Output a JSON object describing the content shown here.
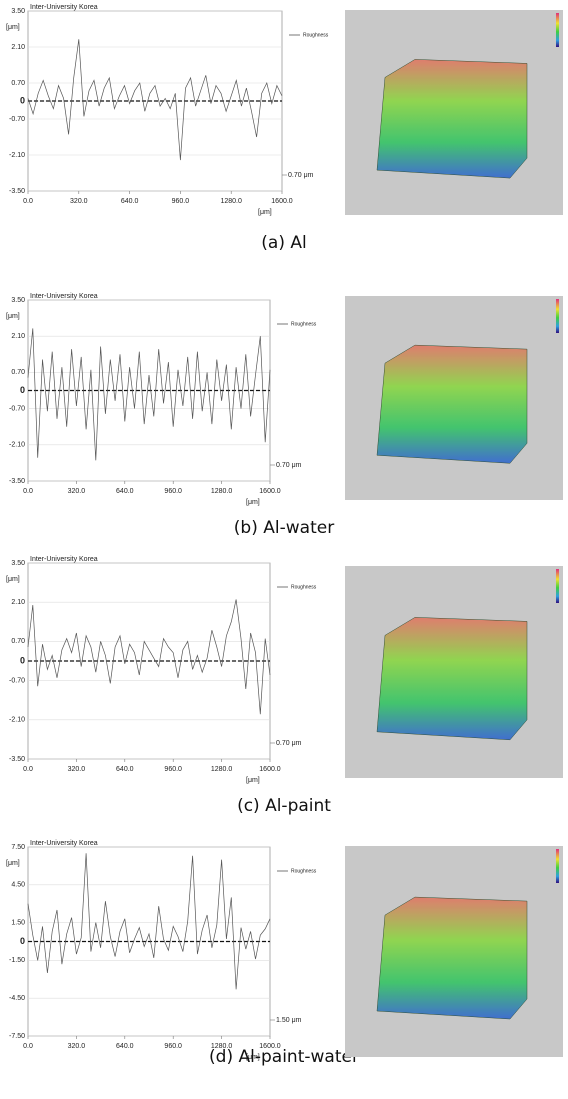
{
  "chart_data": [
    {
      "type": "line",
      "title": "Inter-University Korea",
      "y_label": "[μm]",
      "x_label": "[μm]",
      "caption": "(a)  Al",
      "annotation": "0.70 μm",
      "grid": true,
      "zero_line": true,
      "x": [
        0,
        32,
        64,
        96,
        128,
        160,
        192,
        224,
        256,
        288,
        320,
        352,
        384,
        416,
        448,
        480,
        512,
        544,
        576,
        608,
        640,
        672,
        704,
        736,
        768,
        800,
        832,
        864,
        896,
        928,
        960,
        992,
        1024,
        1056,
        1088,
        1120,
        1152,
        1184,
        1216,
        1248,
        1280,
        1312,
        1344,
        1376,
        1408,
        1440,
        1472,
        1504,
        1536,
        1568,
        1600
      ],
      "series": [
        {
          "name": "Roughness",
          "color": "#555555",
          "values": [
            0.1,
            -0.5,
            0.3,
            0.8,
            0.2,
            -0.3,
            0.6,
            0.1,
            -1.3,
            0.9,
            2.4,
            -0.6,
            0.4,
            0.8,
            -0.2,
            0.5,
            0.9,
            -0.3,
            0.2,
            0.6,
            -0.1,
            0.4,
            0.7,
            -0.4,
            0.3,
            0.6,
            -0.2,
            0.1,
            -0.3,
            0.3,
            -2.3,
            0.5,
            0.9,
            -0.2,
            0.4,
            1.0,
            -0.1,
            0.6,
            0.3,
            -0.4,
            0.2,
            0.8,
            -0.2,
            0.5,
            -0.4,
            -1.4,
            0.3,
            0.7,
            -0.1,
            0.6,
            0.2
          ]
        }
      ],
      "xlim": [
        0,
        1600
      ],
      "xticks": [
        {
          "value": 0,
          "label": "0.0"
        },
        {
          "value": 320,
          "label": "320.0"
        },
        {
          "value": 640,
          "label": "640.0"
        },
        {
          "value": 960,
          "label": "960.0"
        },
        {
          "value": 1280,
          "label": "1280.0"
        },
        {
          "value": 1600,
          "label": "1600.0"
        }
      ],
      "ylim": [
        -3.5,
        3.5
      ],
      "yticks": [
        {
          "value": 3.5,
          "label": "3.50"
        },
        {
          "value": 2.1,
          "label": "2.10"
        },
        {
          "value": 0.7,
          "label": "0.70"
        },
        0,
        {
          "value": -0.7,
          "label": "-0.70"
        },
        {
          "value": -2.1,
          "label": "-2.10"
        },
        {
          "value": -3.5,
          "label": "-3.50"
        }
      ]
    },
    {
      "type": "line",
      "title": "Inter-University Korea",
      "y_label": "[μm]",
      "x_label": "[μm]",
      "caption": "(b)  Al-water",
      "annotation": "0.70 μm",
      "grid": true,
      "zero_line": true,
      "x": [
        0,
        32,
        64,
        96,
        128,
        160,
        192,
        224,
        256,
        288,
        320,
        352,
        384,
        416,
        448,
        480,
        512,
        544,
        576,
        608,
        640,
        672,
        704,
        736,
        768,
        800,
        832,
        864,
        896,
        928,
        960,
        992,
        1024,
        1056,
        1088,
        1120,
        1152,
        1184,
        1216,
        1248,
        1280,
        1312,
        1344,
        1376,
        1408,
        1440,
        1472,
        1504,
        1536,
        1568,
        1600
      ],
      "series": [
        {
          "name": "Roughness",
          "color": "#555555",
          "values": [
            0.5,
            2.4,
            -2.6,
            1.2,
            -0.8,
            1.5,
            -1.1,
            0.9,
            -1.4,
            1.6,
            -0.6,
            1.3,
            -1.5,
            0.8,
            -2.7,
            1.7,
            -0.9,
            1.2,
            -0.4,
            1.4,
            -1.2,
            0.9,
            -0.7,
            1.5,
            -1.3,
            0.6,
            -1.0,
            1.6,
            -0.5,
            1.1,
            -1.4,
            0.8,
            -0.6,
            1.3,
            -1.1,
            1.5,
            -0.8,
            0.7,
            -1.3,
            1.2,
            -0.4,
            1.0,
            -1.5,
            0.9,
            -0.7,
            1.4,
            -1.0,
            0.6,
            2.1,
            -2.0,
            0.8
          ]
        }
      ],
      "xlim": [
        0,
        1600
      ],
      "xticks": [
        {
          "value": 0,
          "label": "0.0"
        },
        {
          "value": 320,
          "label": "320.0"
        },
        {
          "value": 640,
          "label": "640.0"
        },
        {
          "value": 960,
          "label": "960.0"
        },
        {
          "value": 1280,
          "label": "1280.0"
        },
        {
          "value": 1600,
          "label": "1600.0"
        }
      ],
      "ylim": [
        -3.5,
        3.5
      ],
      "yticks": [
        {
          "value": 3.5,
          "label": "3.50"
        },
        {
          "value": 2.1,
          "label": "2.10"
        },
        {
          "value": 0.7,
          "label": "0.70"
        },
        0,
        {
          "value": -0.7,
          "label": "-0.70"
        },
        {
          "value": -2.1,
          "label": "-2.10"
        },
        {
          "value": -3.5,
          "label": "-3.50"
        }
      ]
    },
    {
      "type": "line",
      "title": "Inter-University Korea",
      "y_label": "[μm]",
      "x_label": "[μm]",
      "caption": "(c)  Al-paint",
      "annotation": "0.70 μm",
      "grid": true,
      "zero_line": true,
      "x": [
        0,
        32,
        64,
        96,
        128,
        160,
        192,
        224,
        256,
        288,
        320,
        352,
        384,
        416,
        448,
        480,
        512,
        544,
        576,
        608,
        640,
        672,
        704,
        736,
        768,
        800,
        832,
        864,
        896,
        928,
        960,
        992,
        1024,
        1056,
        1088,
        1120,
        1152,
        1184,
        1216,
        1248,
        1280,
        1312,
        1344,
        1376,
        1408,
        1440,
        1472,
        1504,
        1536,
        1568,
        1600
      ],
      "series": [
        {
          "name": "Roughness",
          "color": "#555555",
          "values": [
            0.5,
            2.0,
            -0.9,
            0.6,
            -0.3,
            0.2,
            -0.6,
            0.4,
            0.8,
            0.3,
            1.0,
            -0.2,
            0.9,
            0.5,
            -0.4,
            0.7,
            0.2,
            -0.8,
            0.5,
            0.9,
            -0.1,
            0.6,
            0.3,
            -0.5,
            0.7,
            0.4,
            0.1,
            -0.2,
            0.8,
            0.5,
            0.3,
            -0.6,
            0.4,
            0.7,
            -0.3,
            0.2,
            -0.4,
            0.1,
            1.1,
            0.5,
            -0.2,
            0.9,
            1.4,
            2.2,
            0.8,
            -1.0,
            1.0,
            0.3,
            -1.9,
            0.8,
            -0.5
          ]
        }
      ],
      "xlim": [
        0,
        1600
      ],
      "xticks": [
        {
          "value": 0,
          "label": "0.0"
        },
        {
          "value": 320,
          "label": "320.0"
        },
        {
          "value": 640,
          "label": "640.0"
        },
        {
          "value": 960,
          "label": "960.0"
        },
        {
          "value": 1280,
          "label": "1280.0"
        },
        {
          "value": 1600,
          "label": "1600.0"
        }
      ],
      "ylim": [
        -3.5,
        3.5
      ],
      "yticks": [
        {
          "value": 3.5,
          "label": "3.50"
        },
        {
          "value": 2.1,
          "label": "2.10"
        },
        {
          "value": 0.7,
          "label": "0.70"
        },
        0,
        {
          "value": -0.7,
          "label": "-0.70"
        },
        {
          "value": -2.1,
          "label": "-2.10"
        },
        {
          "value": -3.5,
          "label": "-3.50"
        }
      ]
    },
    {
      "type": "line",
      "title": "Inter-University Korea",
      "y_label": "[μm]",
      "x_label": "[μm]",
      "caption": "(d)  Al-paint-water",
      "annotation": "1.50 μm",
      "grid": true,
      "zero_line": true,
      "x": [
        0,
        32,
        64,
        96,
        128,
        160,
        192,
        224,
        256,
        288,
        320,
        352,
        384,
        416,
        448,
        480,
        512,
        544,
        576,
        608,
        640,
        672,
        704,
        736,
        768,
        800,
        832,
        864,
        896,
        928,
        960,
        992,
        1024,
        1056,
        1088,
        1120,
        1152,
        1184,
        1216,
        1248,
        1280,
        1312,
        1344,
        1376,
        1408,
        1440,
        1472,
        1504,
        1536,
        1568,
        1600
      ],
      "series": [
        {
          "name": "Roughness",
          "color": "#555555",
          "values": [
            3.0,
            0.5,
            -1.5,
            1.2,
            -2.5,
            0.8,
            2.5,
            -1.8,
            0.6,
            1.9,
            -1.0,
            0.3,
            7.0,
            -0.8,
            1.5,
            -0.5,
            3.2,
            0.4,
            -1.2,
            0.8,
            1.8,
            -0.9,
            0.2,
            1.1,
            -0.4,
            0.6,
            -1.3,
            2.8,
            0.2,
            -0.7,
            1.2,
            0.4,
            -0.8,
            1.6,
            6.8,
            -1.0,
            0.9,
            2.1,
            -0.5,
            1.3,
            6.5,
            0.2,
            3.5,
            -3.8,
            1.1,
            -0.6,
            0.8,
            -1.4,
            0.5,
            1.0,
            1.8
          ]
        }
      ],
      "xlim": [
        0,
        1600
      ],
      "xticks": [
        {
          "value": 0,
          "label": "0.0"
        },
        {
          "value": 320,
          "label": "320.0"
        },
        {
          "value": 640,
          "label": "640.0"
        },
        {
          "value": 960,
          "label": "960.0"
        },
        {
          "value": 1280,
          "label": "1280.0"
        },
        {
          "value": 1600,
          "label": "1600.0"
        }
      ],
      "ylim": [
        -7.5,
        7.5
      ],
      "yticks": [
        {
          "value": 7.5,
          "label": "7.50"
        },
        {
          "value": 4.5,
          "label": "4.50"
        },
        {
          "value": 1.5,
          "label": "1.50"
        },
        0,
        {
          "value": -1.5,
          "label": "-1.50"
        },
        {
          "value": -4.5,
          "label": "-4.50"
        },
        {
          "value": -7.5,
          "label": "-7.50"
        }
      ]
    }
  ]
}
